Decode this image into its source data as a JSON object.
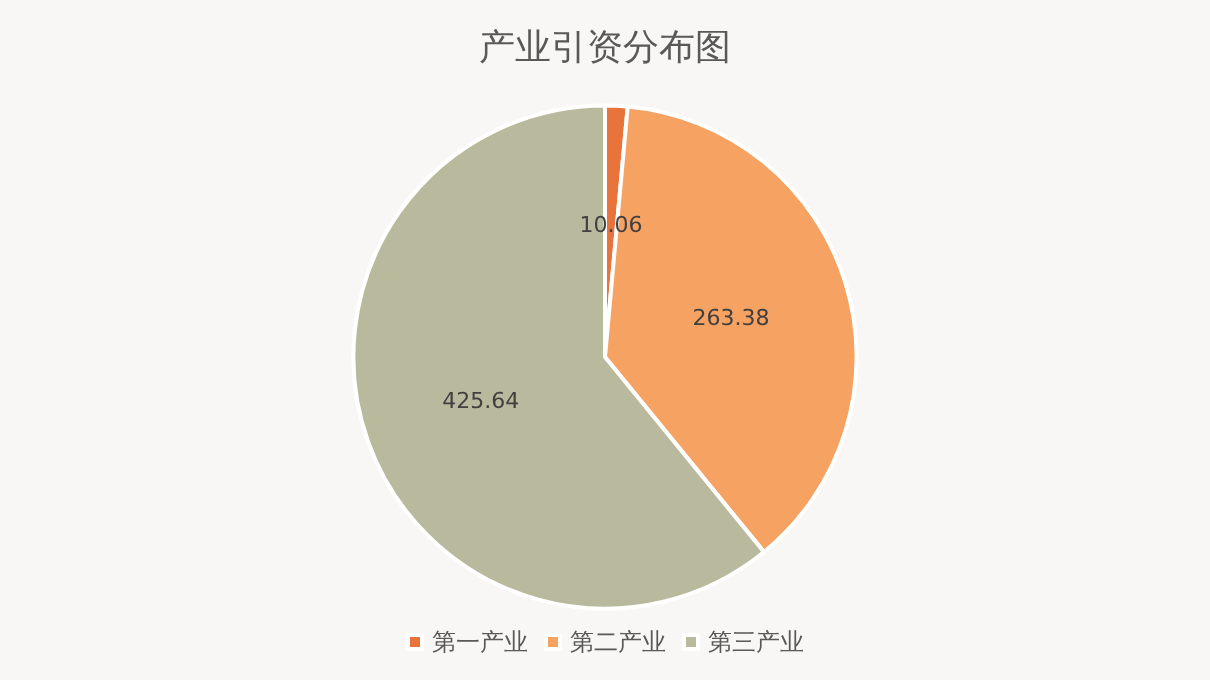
{
  "chart_data": {
    "type": "pie",
    "title": "产业引资分布图",
    "categories": [
      "第一产业",
      "第二产业",
      "第三产业"
    ],
    "values": [
      10.06,
      263.38,
      425.64
    ],
    "colors": [
      "#e8743b",
      "#f5a262",
      "#b9b99d"
    ],
    "data_labels": true,
    "legend": "bottom"
  }
}
